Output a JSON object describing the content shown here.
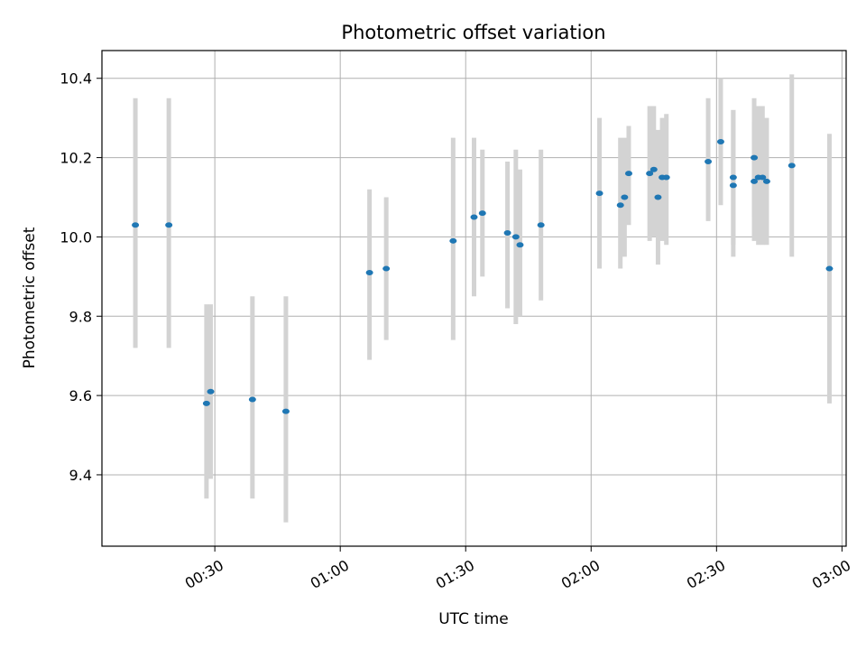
{
  "chart_data": {
    "type": "scatter",
    "title": "Photometric offset variation",
    "xlabel": "UTC time",
    "ylabel": "Photometric offset",
    "x_unit": "time of day (HH:MM)",
    "xlim": [
      "00:03",
      "03:01"
    ],
    "ylim": [
      9.22,
      10.47
    ],
    "grid": true,
    "x_ticks": [
      "00:30",
      "01:00",
      "01:30",
      "02:00",
      "02:30",
      "03:00"
    ],
    "y_ticks": [
      9.4,
      9.6,
      9.8,
      10.0,
      10.2,
      10.4
    ],
    "series": [
      {
        "marker_color": "#1f77b4",
        "errorbar_color": "#d3d3d3",
        "points": [
          {
            "x": "00:11",
            "y": 10.03,
            "low": 9.72,
            "high": 10.35
          },
          {
            "x": "00:19",
            "y": 10.03,
            "low": 9.72,
            "high": 10.35
          },
          {
            "x": "00:28",
            "y": 9.58,
            "low": 9.34,
            "high": 9.83
          },
          {
            "x": "00:29",
            "y": 9.61,
            "low": 9.39,
            "high": 9.83
          },
          {
            "x": "00:39",
            "y": 9.59,
            "low": 9.34,
            "high": 9.85
          },
          {
            "x": "00:47",
            "y": 9.56,
            "low": 9.28,
            "high": 9.85
          },
          {
            "x": "01:07",
            "y": 9.91,
            "low": 9.69,
            "high": 10.12
          },
          {
            "x": "01:11",
            "y": 9.92,
            "low": 9.74,
            "high": 10.1
          },
          {
            "x": "01:27",
            "y": 9.99,
            "low": 9.74,
            "high": 10.25
          },
          {
            "x": "01:32",
            "y": 10.05,
            "low": 9.85,
            "high": 10.25
          },
          {
            "x": "01:34",
            "y": 10.06,
            "low": 9.9,
            "high": 10.22
          },
          {
            "x": "01:40",
            "y": 10.01,
            "low": 9.82,
            "high": 10.19
          },
          {
            "x": "01:42",
            "y": 10.0,
            "low": 9.78,
            "high": 10.22
          },
          {
            "x": "01:43",
            "y": 9.98,
            "low": 9.8,
            "high": 10.17
          },
          {
            "x": "01:48",
            "y": 10.03,
            "low": 9.84,
            "high": 10.22
          },
          {
            "x": "02:02",
            "y": 10.11,
            "low": 9.92,
            "high": 10.3
          },
          {
            "x": "02:07",
            "y": 10.08,
            "low": 9.92,
            "high": 10.25
          },
          {
            "x": "02:08",
            "y": 10.1,
            "low": 9.95,
            "high": 10.25
          },
          {
            "x": "02:09",
            "y": 10.16,
            "low": 10.03,
            "high": 10.28
          },
          {
            "x": "02:14",
            "y": 10.16,
            "low": 9.99,
            "high": 10.33
          },
          {
            "x": "02:15",
            "y": 10.17,
            "low": 10.0,
            "high": 10.33
          },
          {
            "x": "02:16",
            "y": 10.1,
            "low": 9.93,
            "high": 10.27
          },
          {
            "x": "02:17",
            "y": 10.15,
            "low": 9.99,
            "high": 10.3
          },
          {
            "x": "02:18",
            "y": 10.15,
            "low": 9.98,
            "high": 10.31
          },
          {
            "x": "02:28",
            "y": 10.19,
            "low": 10.04,
            "high": 10.35
          },
          {
            "x": "02:31",
            "y": 10.24,
            "low": 10.08,
            "high": 10.4
          },
          {
            "x": "02:34",
            "y": 10.13,
            "low": 9.95,
            "high": 10.32
          },
          {
            "x": "02:34",
            "y": 10.15,
            "low": 9.98,
            "high": 10.32
          },
          {
            "x": "02:39",
            "y": 10.2,
            "low": 10.05,
            "high": 10.35
          },
          {
            "x": "02:39",
            "y": 10.14,
            "low": 9.99,
            "high": 10.29
          },
          {
            "x": "02:40",
            "y": 10.15,
            "low": 9.98,
            "high": 10.33
          },
          {
            "x": "02:41",
            "y": 10.15,
            "low": 9.98,
            "high": 10.33
          },
          {
            "x": "02:42",
            "y": 10.14,
            "low": 9.98,
            "high": 10.3
          },
          {
            "x": "02:48",
            "y": 10.18,
            "low": 9.95,
            "high": 10.41
          },
          {
            "x": "02:57",
            "y": 9.92,
            "low": 9.58,
            "high": 10.26
          }
        ]
      }
    ]
  }
}
